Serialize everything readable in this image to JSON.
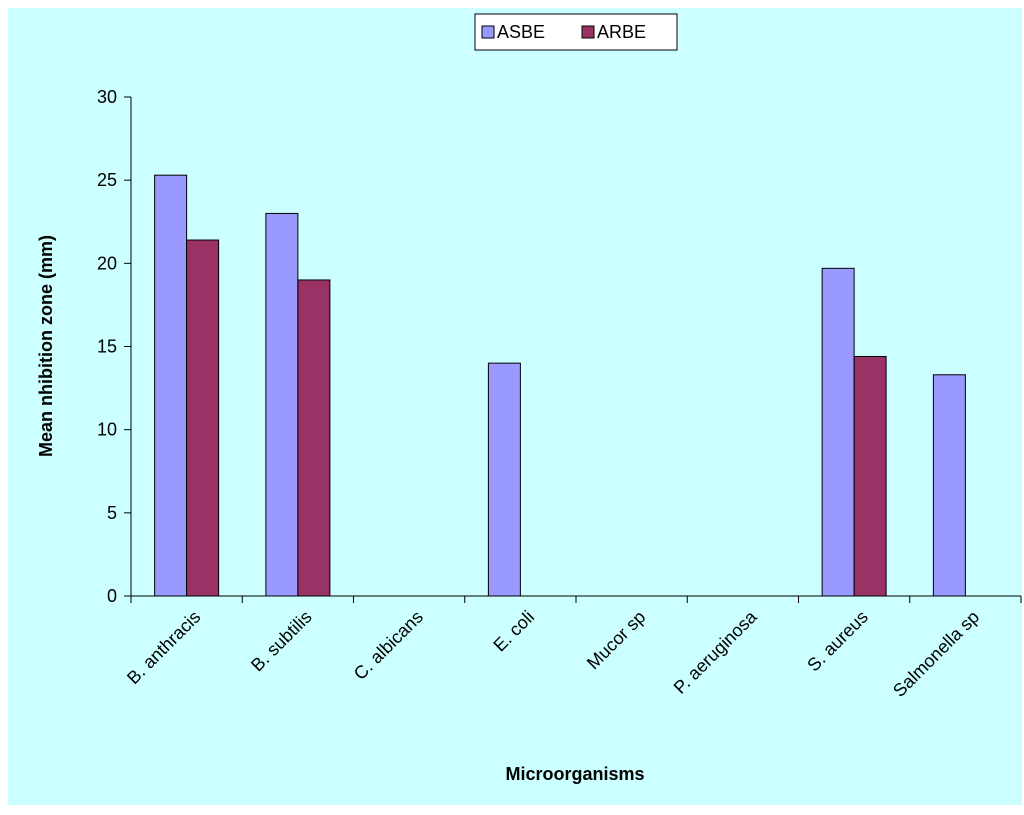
{
  "chart_data": {
    "type": "bar",
    "title": "",
    "xlabel": "Microorganisms",
    "ylabel": "Mean nhibition zone (mm)",
    "categories": [
      "B. anthracis",
      "B. subtilis",
      "C. albicans",
      "E. coli",
      "Mucor sp",
      "P. aeruginosa",
      "S. aureus",
      "Salmonella sp"
    ],
    "series": [
      {
        "name": "ASBE",
        "color": "#9999ff",
        "values": [
          25.3,
          23.0,
          0,
          14.0,
          0,
          0,
          19.7,
          13.3
        ]
      },
      {
        "name": "ARBE",
        "color": "#993366",
        "values": [
          21.4,
          19.0,
          0,
          0,
          0,
          0,
          14.4,
          0
        ]
      }
    ],
    "ylim": [
      0,
      30
    ],
    "yticks": [
      0,
      5,
      10,
      15,
      20,
      25,
      30
    ],
    "grid": false,
    "legend": "top-center",
    "background": "#ccffff"
  }
}
